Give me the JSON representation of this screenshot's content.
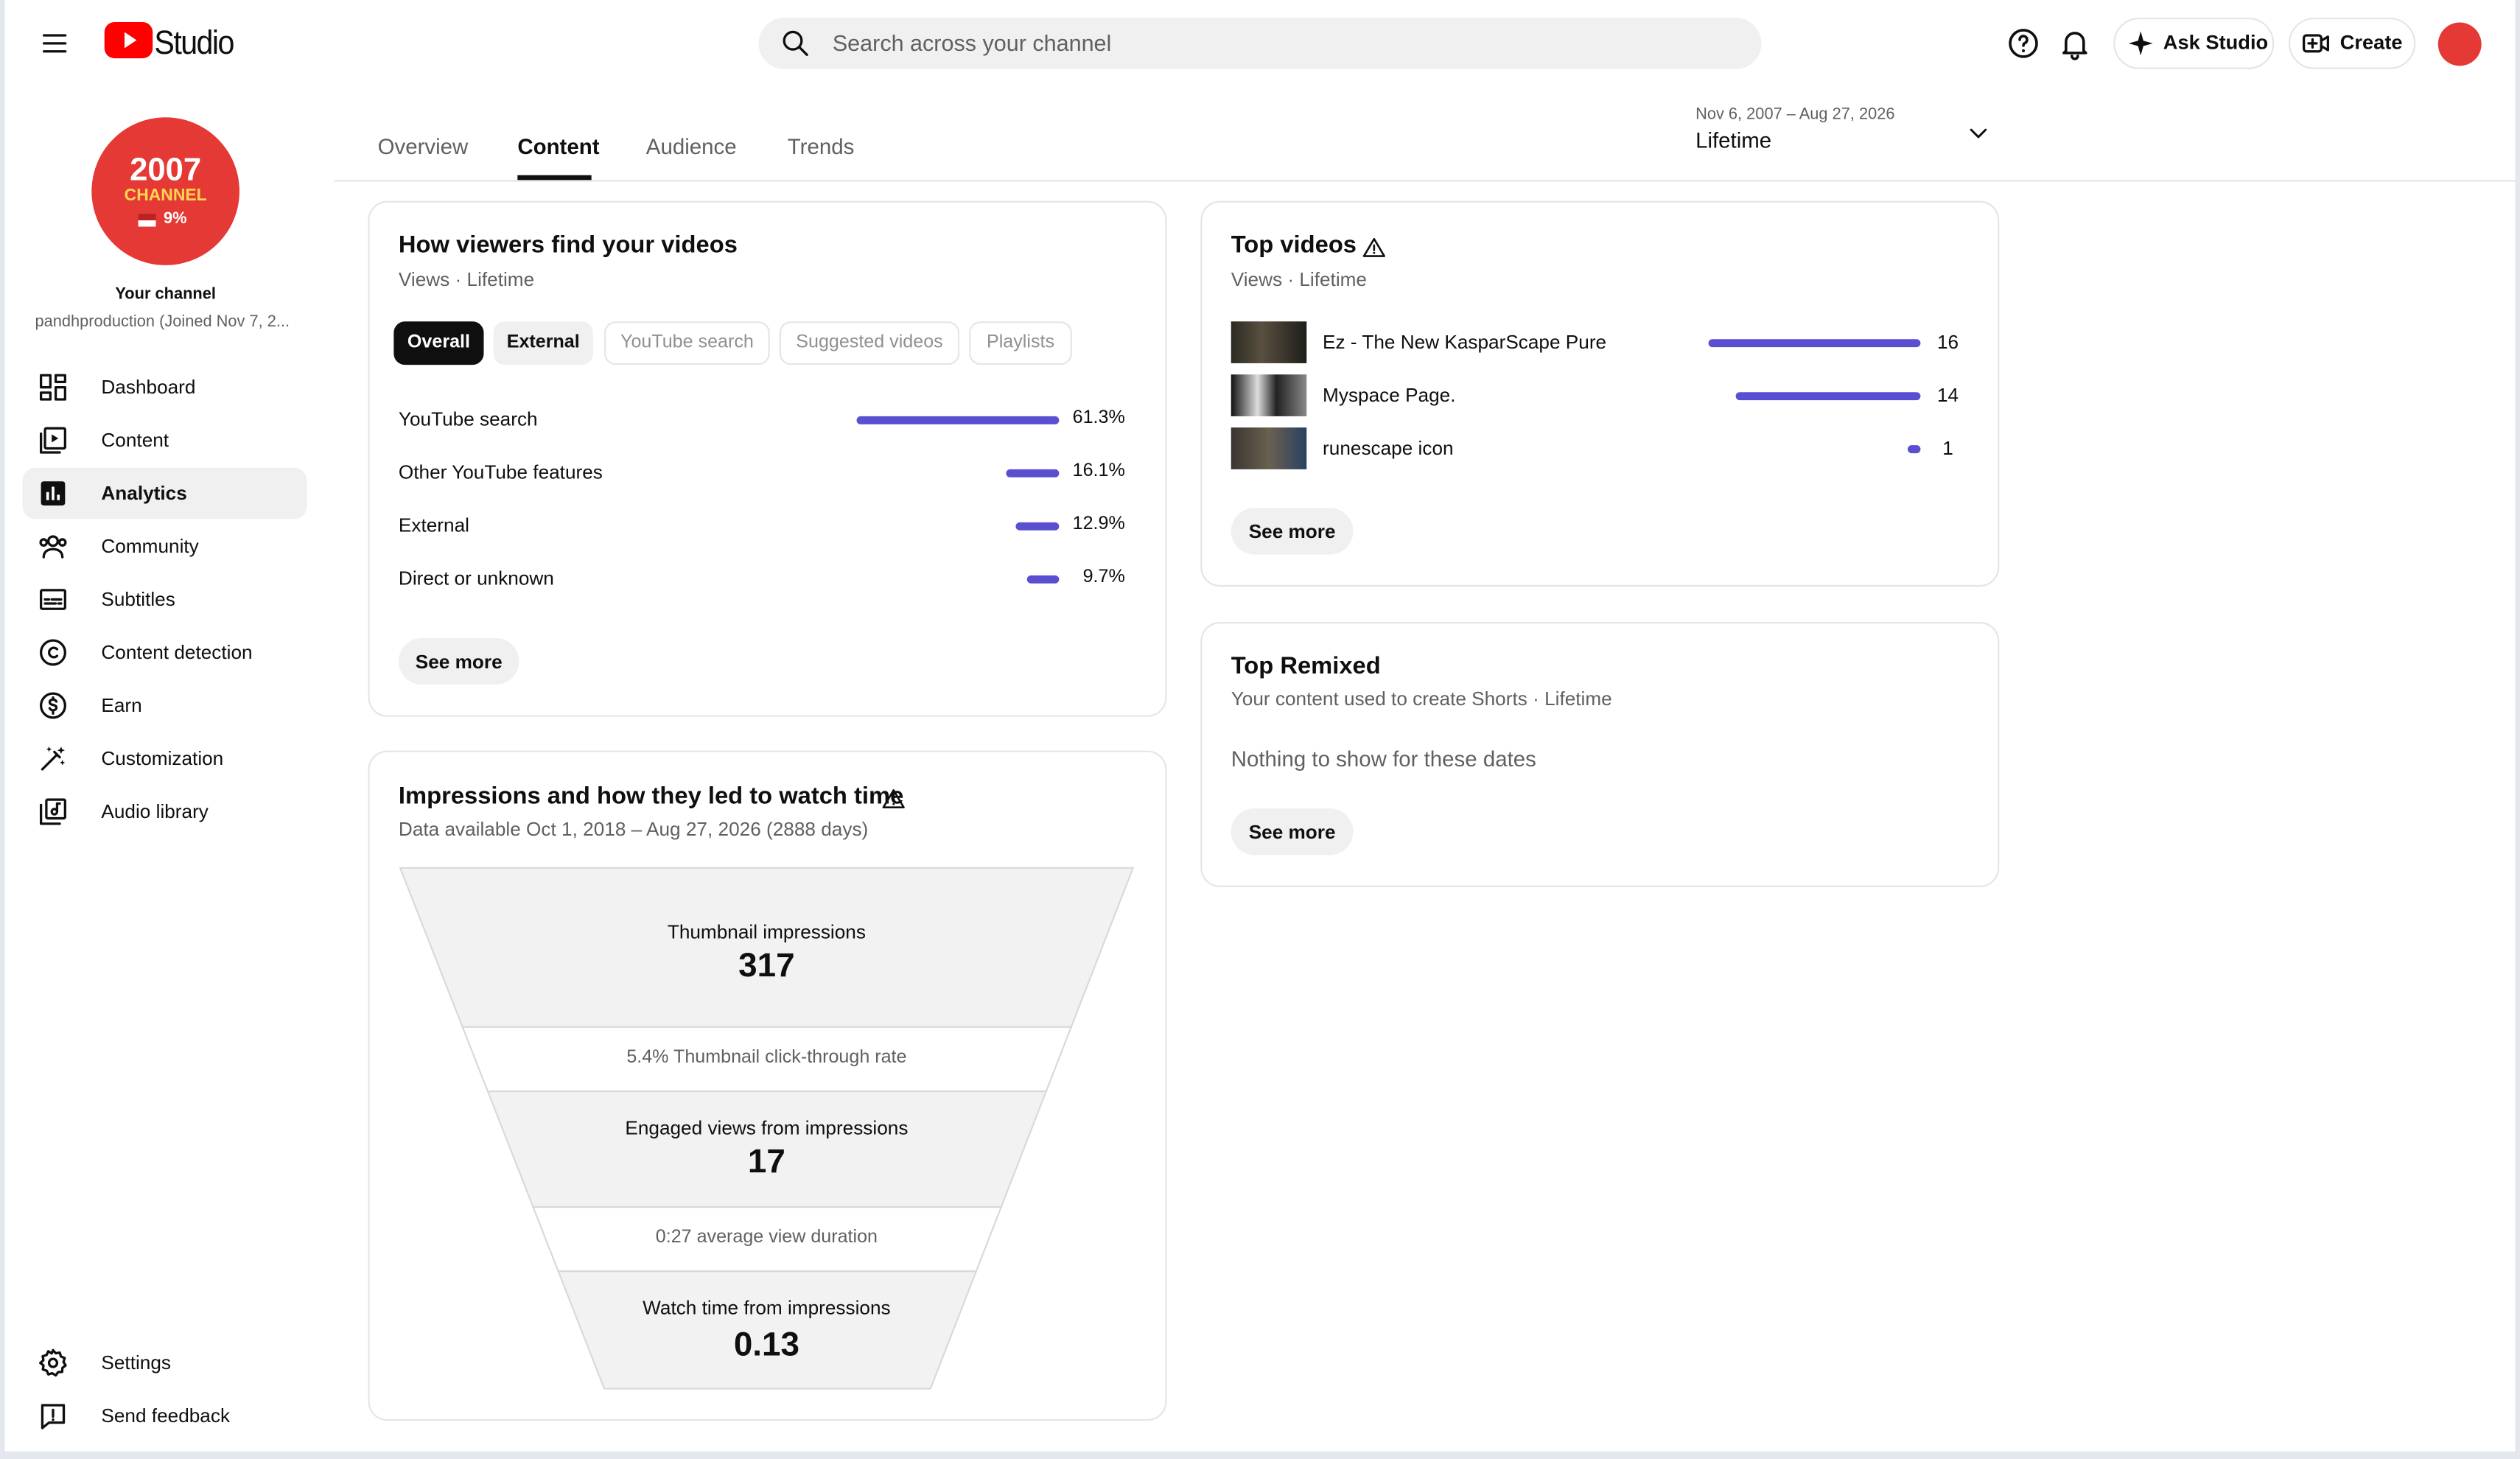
{
  "header": {
    "app_name": "Studio",
    "search_placeholder": "Search across your channel",
    "ask_button": "Ask Studio",
    "create_button": "Create"
  },
  "sidebar": {
    "avatar_lines": [
      "2007",
      "CHANNEL",
      "9%"
    ],
    "channel_label": "Your channel",
    "channel_subtitle": "pandhproduction (Joined Nov 7, 2...",
    "nav": [
      "Dashboard",
      "Content",
      "Analytics",
      "Community",
      "Subtitles",
      "Content detection",
      "Earn",
      "Customization",
      "Audio library"
    ],
    "active_nav": 2,
    "bottom_nav": [
      "Settings",
      "Send feedback"
    ]
  },
  "tabs": [
    "Overview",
    "Content",
    "Audience",
    "Trends"
  ],
  "active_tab": 1,
  "date_range": {
    "range": "Nov 6, 2007 – Aug 27, 2026",
    "period": "Lifetime"
  },
  "traffic_sources": {
    "title": "How viewers find your videos",
    "subtitle": "Views · Lifetime",
    "chips": [
      "Overall",
      "External",
      "YouTube search",
      "Suggested videos",
      "Playlists"
    ],
    "active_chip": 0,
    "rows": [
      {
        "name": "YouTube search",
        "value": 61.3,
        "value_label": "61.3%"
      },
      {
        "name": "Other YouTube features",
        "value": 16.1,
        "value_label": "16.1%"
      },
      {
        "name": "External",
        "value": 12.9,
        "value_label": "12.9%"
      },
      {
        "name": "Direct or unknown",
        "value": 9.7,
        "value_label": "9.7%"
      }
    ],
    "button": "See more"
  },
  "impressions": {
    "title": "Impressions and how they led to watch time",
    "subtitle": "Data available Oct 1, 2018 – Aug 27, 2026 (2888 days)",
    "stages": [
      {
        "label": "Thumbnail impressions",
        "value": 317
      },
      {
        "label": "Engaged views from impressions",
        "value": 17
      },
      {
        "label": "Watch time from impressions",
        "value": 0.13
      }
    ],
    "rates": [
      "5.4% Thumbnail click-through rate",
      "0:27 average view duration"
    ]
  },
  "top_videos": {
    "title": "Top videos",
    "subtitle": "Views · Lifetime",
    "rows": [
      {
        "title": "Ez - The New KasparScape Pure",
        "views": 16
      },
      {
        "title": "Myspace Page.",
        "views": 14
      },
      {
        "title": "runescape icon",
        "views": 1
      }
    ],
    "button": "See more"
  },
  "top_remixed": {
    "title": "Top Remixed",
    "subtitle": "Your content used to create Shorts · Lifetime",
    "empty_message": "Nothing to show for these dates",
    "button": "See more"
  }
}
